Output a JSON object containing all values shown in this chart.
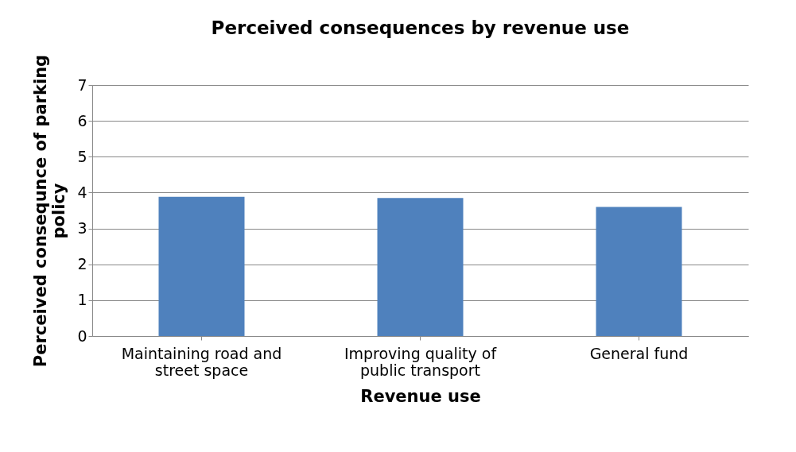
{
  "chart_data": {
    "type": "bar",
    "title": "Perceived consequences by revenue use",
    "categories": [
      "Maintaining road and street space",
      "Improving quality of public transport",
      "General fund"
    ],
    "values": [
      3.88,
      3.85,
      3.6
    ],
    "color": "#4f81bd",
    "xlabel": "Revenue  use",
    "ylabel": "Perceived consequnce of parking policy",
    "ylim": [
      0,
      7
    ],
    "yticks": [
      0,
      1,
      2,
      3,
      4,
      5,
      6,
      7
    ],
    "grid": "y"
  }
}
